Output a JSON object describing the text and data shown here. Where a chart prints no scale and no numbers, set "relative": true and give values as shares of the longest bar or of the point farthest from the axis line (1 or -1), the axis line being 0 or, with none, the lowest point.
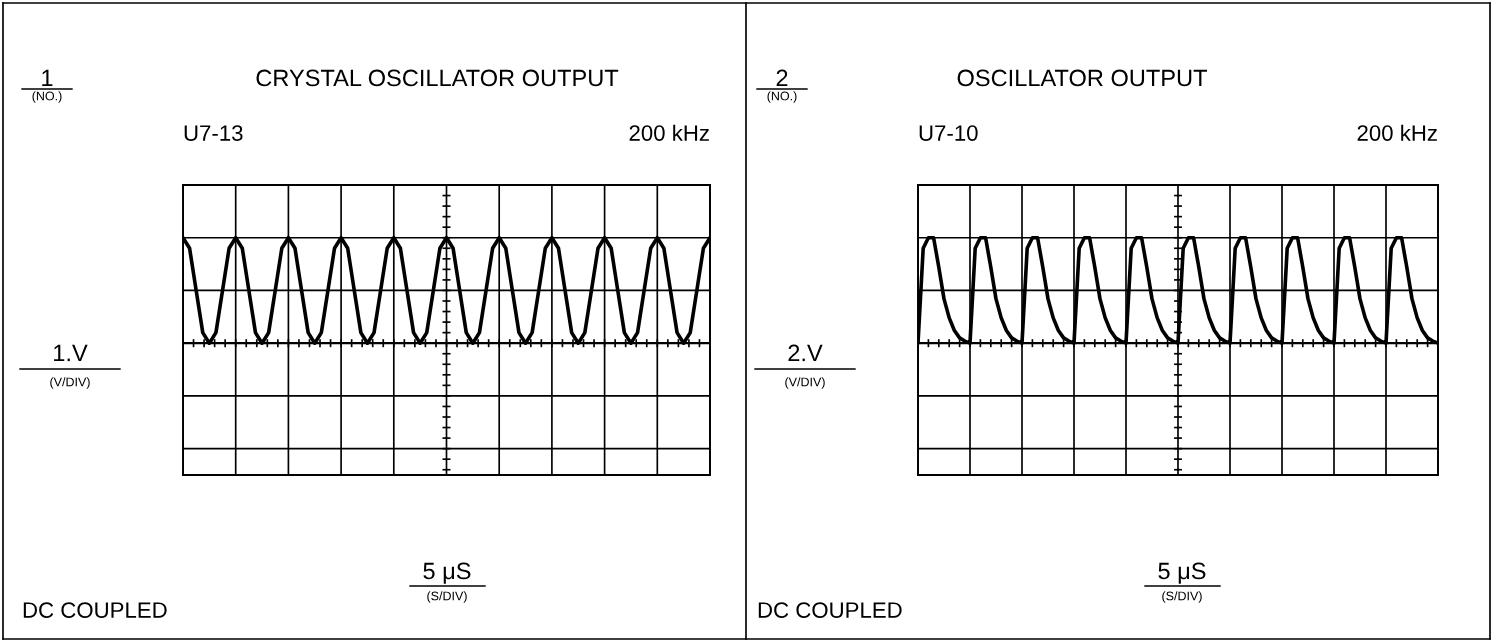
{
  "chart_data": [
    {
      "type": "line",
      "relative": true,
      "grid": true,
      "title": "CRYSTAL OSCILLATOR OUTPUT",
      "ylabel": "1.V",
      "xlabel": "5 μS",
      "annotations": [
        "1",
        "(NO.)",
        "U7-13",
        "200 kHz",
        "(V/DIV)",
        "(S/DIV)",
        "DC COUPLED"
      ],
      "categories": [
        null,
        null,
        null,
        null,
        null,
        null,
        null,
        null,
        null,
        null,
        null,
        null,
        null,
        null,
        null,
        null,
        null,
        null,
        null,
        null,
        null,
        null,
        null,
        null,
        null,
        null,
        null,
        null,
        null,
        null,
        null,
        null,
        null,
        null,
        null,
        null,
        null,
        null,
        null,
        null,
        null,
        null,
        null,
        null,
        null,
        null,
        null,
        null,
        null,
        null,
        null,
        null,
        null,
        null,
        null,
        null,
        null,
        null,
        null,
        null,
        null,
        null,
        null,
        null,
        null,
        null,
        null,
        null,
        null,
        null,
        null,
        null,
        null,
        null,
        null,
        null,
        null,
        null,
        null,
        null,
        null
      ],
      "series": [
        {
          "color": "#000000",
          "values": [
            1,
            0.9,
            0.5,
            0.1,
            0,
            0.1,
            0.5,
            0.9,
            1,
            0.9,
            0.5,
            0.1,
            0,
            0.1,
            0.5,
            0.9,
            1,
            0.9,
            0.5,
            0.1,
            0,
            0.1,
            0.5,
            0.9,
            1,
            0.9,
            0.5,
            0.1,
            0,
            0.1,
            0.5,
            0.9,
            1,
            0.9,
            0.5,
            0.1,
            0,
            0.1,
            0.5,
            0.9,
            1,
            0.9,
            0.5,
            0.1,
            0,
            0.1,
            0.5,
            0.9,
            1,
            0.9,
            0.5,
            0.1,
            0,
            0.1,
            0.5,
            0.9,
            1,
            0.9,
            0.5,
            0.1,
            0,
            0.1,
            0.5,
            0.9,
            1,
            0.9,
            0.5,
            0.1,
            0,
            0.1,
            0.5,
            0.9,
            1,
            0.9,
            0.5,
            0.1,
            0,
            0.1,
            0.5,
            0.9,
            1
          ]
        }
      ]
    },
    {
      "type": "line",
      "relative": true,
      "grid": true,
      "title": "OSCILLATOR OUTPUT",
      "ylabel": "2.V",
      "xlabel": "5 μS",
      "annotations": [
        "2",
        "(NO.)",
        "U7-10",
        "200 kHz",
        "(V/DIV)",
        "(S/DIV)",
        "DC COUPLED"
      ],
      "categories": [
        null,
        null,
        null,
        null,
        null,
        null,
        null,
        null,
        null,
        null,
        null,
        null,
        null,
        null,
        null,
        null,
        null,
        null,
        null,
        null,
        null,
        null,
        null,
        null,
        null,
        null,
        null,
        null,
        null,
        null,
        null,
        null,
        null,
        null,
        null,
        null,
        null,
        null,
        null,
        null,
        null,
        null,
        null,
        null,
        null,
        null,
        null,
        null,
        null,
        null,
        null,
        null,
        null,
        null,
        null,
        null,
        null,
        null,
        null,
        null,
        null,
        null,
        null,
        null,
        null,
        null,
        null,
        null,
        null,
        null,
        null,
        null,
        null,
        null,
        null,
        null,
        null,
        null,
        null,
        null,
        null,
        null,
        null,
        null,
        null,
        null,
        null,
        null,
        null,
        null,
        null,
        null,
        null,
        null,
        null,
        null,
        null,
        null,
        null,
        null,
        null
      ],
      "series": [
        {
          "color": "#000000",
          "values": [
            0,
            0.9,
            1,
            1,
            0.72,
            0.42,
            0.24,
            0.12,
            0.05,
            0.02,
            0,
            0.9,
            1,
            1,
            0.72,
            0.42,
            0.24,
            0.12,
            0.05,
            0.02,
            0,
            0.9,
            1,
            1,
            0.72,
            0.42,
            0.24,
            0.12,
            0.05,
            0.02,
            0,
            0.9,
            1,
            1,
            0.72,
            0.42,
            0.24,
            0.12,
            0.05,
            0.02,
            0,
            0.9,
            1,
            1,
            0.72,
            0.42,
            0.24,
            0.12,
            0.05,
            0.02,
            0,
            0.9,
            1,
            1,
            0.72,
            0.42,
            0.24,
            0.12,
            0.05,
            0.02,
            0,
            0.9,
            1,
            1,
            0.72,
            0.42,
            0.24,
            0.12,
            0.05,
            0.02,
            0,
            0.9,
            1,
            1,
            0.72,
            0.42,
            0.24,
            0.12,
            0.05,
            0.02,
            0,
            0.9,
            1,
            1,
            0.72,
            0.42,
            0.24,
            0.12,
            0.05,
            0.02,
            0,
            0.9,
            1,
            1,
            0.72,
            0.42,
            0.24,
            0.12,
            0.05,
            0.02,
            0
          ]
        }
      ]
    }
  ]
}
